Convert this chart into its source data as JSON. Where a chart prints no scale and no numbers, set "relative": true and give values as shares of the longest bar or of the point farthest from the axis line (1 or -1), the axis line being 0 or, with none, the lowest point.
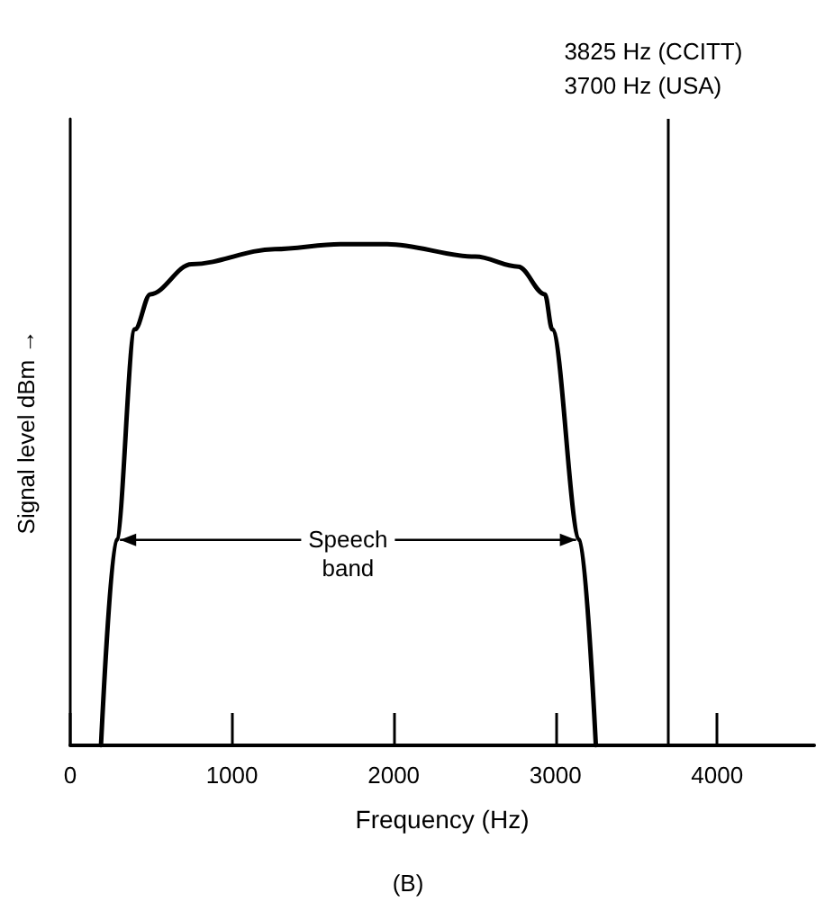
{
  "chart_data": {
    "type": "line",
    "relative": true,
    "xlabel": "Frequency (Hz)",
    "ylabel": "Signal level dBm →",
    "xlim": [
      0,
      4600
    ],
    "xticks": [
      0,
      1000,
      2000,
      3000,
      4000
    ],
    "tick_labels": "x",
    "grid": false,
    "marker": "none",
    "line_style": "solid",
    "series": [
      {
        "color": "#000000",
        "x": [
          190,
          285,
          400,
          495,
          750,
          1265,
          1670,
          1960,
          2505,
          2770,
          2935,
          2980,
          3150,
          3250
        ],
        "values": [
          0,
          0.41,
          0.83,
          0.9,
          0.96,
          0.99,
          1,
          1,
          0.975,
          0.955,
          0.9,
          0.83,
          0.41,
          0
        ]
      }
    ],
    "ref_lines": [
      {
        "axis": "x",
        "value": 3700,
        "label": "3825 Hz (CCITT)\n3700 Hz (USA)",
        "color": "#000000",
        "line_style": "solid"
      }
    ],
    "annotations": [
      "Speech\nband",
      "(B)"
    ]
  }
}
